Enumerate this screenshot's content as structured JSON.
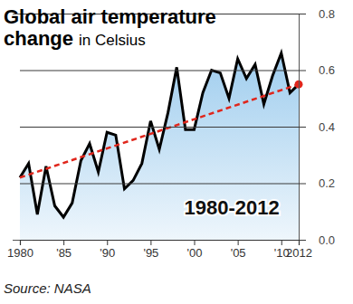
{
  "chart_data": {
    "type": "area",
    "title": "Global air temperature change",
    "subtitle": "in Celsius",
    "annotations": [
      {
        "text": "1980-2012"
      }
    ],
    "source": "Source: NASA",
    "x": [
      1980,
      1981,
      1982,
      1983,
      1984,
      1985,
      1986,
      1987,
      1988,
      1989,
      1990,
      1991,
      1992,
      1993,
      1994,
      1995,
      1996,
      1997,
      1998,
      1999,
      2000,
      2001,
      2002,
      2003,
      2004,
      2005,
      2006,
      2007,
      2008,
      2009,
      2010,
      2011,
      2012
    ],
    "series": [
      {
        "color": "#000000",
        "values": [
          0.22,
          0.27,
          0.09,
          0.26,
          0.12,
          0.08,
          0.13,
          0.28,
          0.34,
          0.24,
          0.38,
          0.37,
          0.18,
          0.21,
          0.27,
          0.42,
          0.32,
          0.45,
          0.61,
          0.39,
          0.39,
          0.52,
          0.6,
          0.59,
          0.5,
          0.64,
          0.57,
          0.62,
          0.48,
          0.58,
          0.66,
          0.52,
          0.55
        ]
      }
    ],
    "trend": {
      "x": [
        1980,
        2012
      ],
      "values": [
        0.22,
        0.55
      ],
      "color": "#e0261c",
      "line_style": "dashed",
      "marker": "circle"
    },
    "xlim": [
      1980,
      2012
    ],
    "xticks": [
      1980,
      {
        "value": 1985,
        "label": "'85"
      },
      {
        "value": 1990,
        "label": "'90"
      },
      {
        "value": 1995,
        "label": "'95"
      },
      {
        "value": 2000,
        "label": "'00"
      },
      {
        "value": 2005,
        "label": "'05"
      },
      {
        "value": 2010,
        "label": "'10"
      },
      2012
    ],
    "ylim": [
      0,
      0.8
    ],
    "yticks": [
      {
        "value": 0,
        "label": "0.0"
      },
      0.2,
      0.4,
      0.6,
      0.8
    ],
    "grid": true
  }
}
